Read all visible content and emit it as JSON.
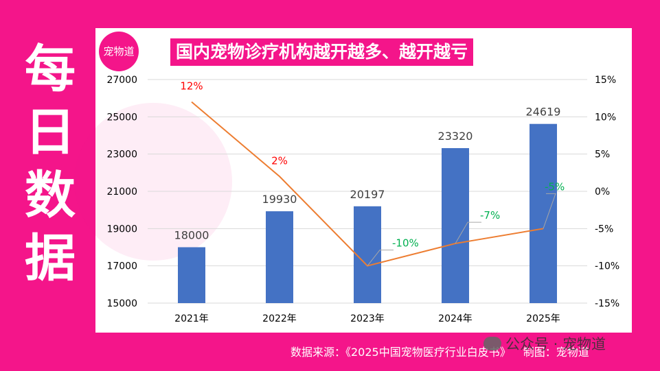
{
  "side_title": [
    "每",
    "日",
    "数",
    "据"
  ],
  "logo_text": "宠物道",
  "footer": {
    "source": "数据来源：《2025中国宠物医疗行业白皮书》",
    "made_by": "制图：宠物道"
  },
  "watermark": {
    "account": "公众号 · 宠物道"
  },
  "colors": {
    "background": "#F4158A",
    "bar": "#4472C4",
    "line": "#ED7D31",
    "positive_label": "#FF0000",
    "negative_label": "#00B050"
  },
  "chart_data": {
    "type": "bar",
    "title": "国内宠物诊疗机构越开越多、越开越亏",
    "categories": [
      "2021年",
      "2022年",
      "2023年",
      "2024年",
      "2025年"
    ],
    "series": [
      {
        "values": [
          18000,
          19930,
          20197,
          23320,
          24619
        ],
        "data_labels": [
          "18000",
          "19930",
          "20197",
          "23320",
          "24619"
        ]
      },
      {
        "type": "line",
        "axis": "right",
        "values": [
          12,
          2,
          -10,
          -7,
          -5
        ],
        "data_labels": [
          "12%",
          "2%",
          "-10%",
          "-7%",
          "-5%"
        ]
      }
    ],
    "y_left": {
      "ylim": [
        15000,
        27000
      ],
      "ticks": [
        "15000",
        "17000",
        "19000",
        "21000",
        "23000",
        "25000",
        "27000"
      ]
    },
    "y_right": {
      "ylim": [
        -15,
        15
      ],
      "ticks": [
        "-15%",
        "-10%",
        "-5%",
        "0%",
        "5%",
        "10%",
        "15%"
      ]
    },
    "grid": true
  }
}
